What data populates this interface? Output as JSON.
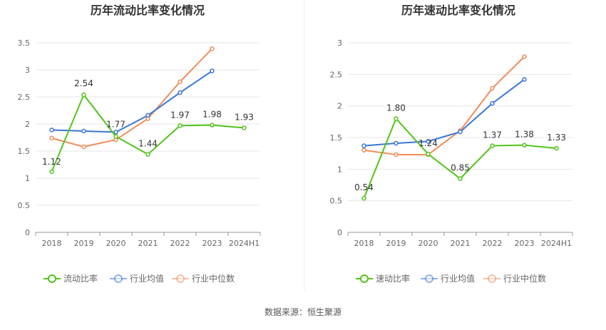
{
  "source": "数据来源：恒生聚源",
  "colors": {
    "main": "#52c41a",
    "avg": "#3a75d8",
    "median": "#f08c5a",
    "grid": "#e6e6e6",
    "axis": "#999999"
  },
  "chart_data": [
    {
      "type": "line",
      "title": "历年流动比率变化情况",
      "categories": [
        "2018",
        "2019",
        "2020",
        "2021",
        "2022",
        "2023",
        "2024H1"
      ],
      "yticks": [
        "0",
        "0.5",
        "1",
        "1.5",
        "2",
        "2.5",
        "3",
        "3.5"
      ],
      "ylim": [
        0,
        3.5
      ],
      "grid": true,
      "legend_position": "bottom",
      "series": [
        {
          "name": "流动比率",
          "key": "main",
          "values": [
            1.12,
            2.54,
            1.77,
            1.44,
            1.97,
            1.98,
            1.93
          ],
          "labels": [
            "1.12",
            "2.54",
            "1.77",
            "1.44",
            "1.97",
            "1.98",
            "1.93"
          ]
        },
        {
          "name": "行业均值",
          "key": "avg",
          "values": [
            1.89,
            1.87,
            1.85,
            2.16,
            2.58,
            2.98,
            null
          ]
        },
        {
          "name": "行业中位数",
          "key": "median",
          "values": [
            1.74,
            1.58,
            1.71,
            2.1,
            2.78,
            3.39,
            null
          ]
        }
      ]
    },
    {
      "type": "line",
      "title": "历年速动比率变化情况",
      "categories": [
        "2018",
        "2019",
        "2020",
        "2021",
        "2022",
        "2023",
        "2024H1"
      ],
      "yticks": [
        "0",
        "0.5",
        "1",
        "1.5",
        "2",
        "2.5",
        "3"
      ],
      "ylim": [
        0,
        3
      ],
      "grid": true,
      "legend_position": "bottom",
      "series": [
        {
          "name": "速动比率",
          "key": "main",
          "values": [
            0.54,
            1.8,
            1.24,
            0.85,
            1.37,
            1.38,
            1.33
          ],
          "labels": [
            "0.54",
            "1.80",
            "1.24",
            "0.85",
            "1.37",
            "1.38",
            "1.33"
          ]
        },
        {
          "name": "行业均值",
          "key": "avg",
          "values": [
            1.37,
            1.41,
            1.44,
            1.59,
            2.04,
            2.42,
            null
          ]
        },
        {
          "name": "行业中位数",
          "key": "median",
          "values": [
            1.3,
            1.23,
            1.23,
            1.61,
            2.28,
            2.78,
            null
          ]
        }
      ]
    }
  ]
}
